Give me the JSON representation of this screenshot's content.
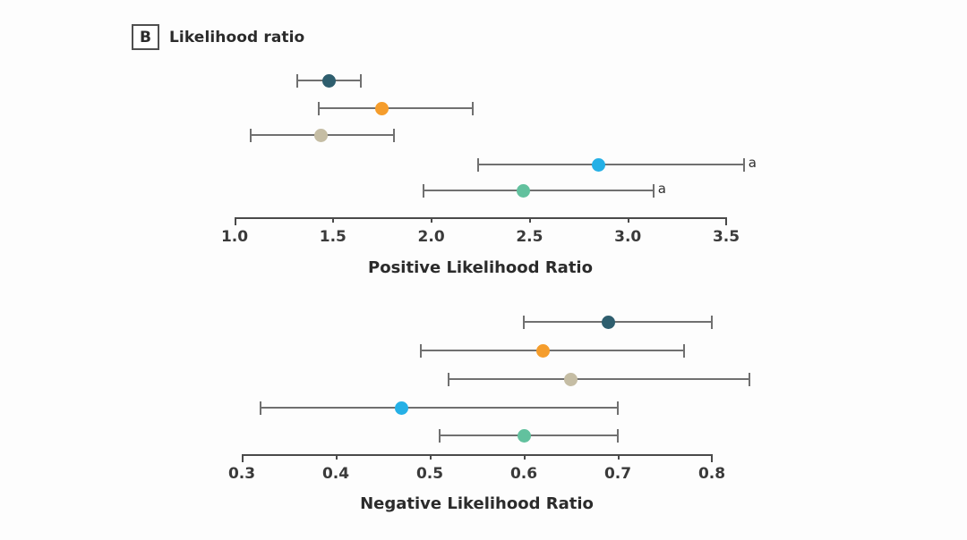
{
  "figure": {
    "panel_label": "B",
    "title": "Likelihood ratio"
  },
  "colors": {
    "marker_dark_teal": "#2e5e6e",
    "marker_orange": "#f59d2c",
    "marker_tan": "#c5bda4",
    "marker_cyan": "#25b0e6",
    "marker_green": "#62c19e",
    "error_bar": "#707070",
    "axis": "#4a4a4a",
    "text": "#2b2b2b",
    "background": "#fdfdfd"
  },
  "chart_data": [
    {
      "type": "scatter",
      "subtype": "forest_plot_horizontal_ci",
      "title": "",
      "xlabel": "Positive Likelihood Ratio",
      "ylabel": "",
      "xlim": [
        1.0,
        3.5
      ],
      "xticks": [
        "1.0",
        "1.5",
        "2.0",
        "2.5",
        "3.0",
        "3.5"
      ],
      "grid": false,
      "legend": false,
      "series": [
        {
          "color": "#2e5e6e",
          "value": 1.48,
          "ci_low": 1.32,
          "ci_high": 1.64,
          "annotation": ""
        },
        {
          "color": "#f59d2c",
          "value": 1.75,
          "ci_low": 1.43,
          "ci_high": 2.21,
          "annotation": ""
        },
        {
          "color": "#c5bda4",
          "value": 1.44,
          "ci_low": 1.08,
          "ci_high": 1.81,
          "annotation": ""
        },
        {
          "color": "#25b0e6",
          "value": 2.85,
          "ci_low": 2.24,
          "ci_high": 3.59,
          "annotation": "a"
        },
        {
          "color": "#62c19e",
          "value": 2.47,
          "ci_low": 1.96,
          "ci_high": 3.13,
          "annotation": "a"
        }
      ]
    },
    {
      "type": "scatter",
      "subtype": "forest_plot_horizontal_ci",
      "title": "",
      "xlabel": "Negative Likelihood Ratio",
      "ylabel": "",
      "xlim": [
        0.3,
        0.8
      ],
      "xticks": [
        "0.3",
        "0.4",
        "0.5",
        "0.6",
        "0.7",
        "0.8"
      ],
      "grid": false,
      "legend": false,
      "series": [
        {
          "color": "#2e5e6e",
          "value": 0.69,
          "ci_low": 0.6,
          "ci_high": 0.8,
          "annotation": ""
        },
        {
          "color": "#f59d2c",
          "value": 0.62,
          "ci_low": 0.49,
          "ci_high": 0.77,
          "annotation": ""
        },
        {
          "color": "#c5bda4",
          "value": 0.65,
          "ci_low": 0.52,
          "ci_high": 0.84,
          "annotation": ""
        },
        {
          "color": "#25b0e6",
          "value": 0.47,
          "ci_low": 0.32,
          "ci_high": 0.7,
          "annotation": ""
        },
        {
          "color": "#62c19e",
          "value": 0.6,
          "ci_low": 0.51,
          "ci_high": 0.7,
          "annotation": ""
        }
      ]
    }
  ]
}
